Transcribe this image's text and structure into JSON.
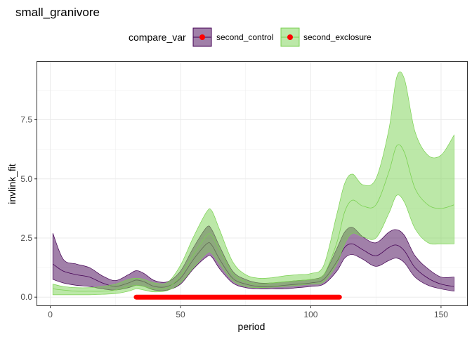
{
  "chart_data": {
    "type": "area",
    "title": "small_granivore",
    "xlabel": "period",
    "ylabel": "invlink_fit",
    "xlim": [
      -5,
      160
    ],
    "ylim": [
      -0.35,
      9.95
    ],
    "x_ticks": [
      0,
      50,
      100,
      150
    ],
    "x_tick_labels": [
      "0",
      "50",
      "100",
      "150"
    ],
    "y_ticks": [
      0,
      2.5,
      5,
      7.5
    ],
    "y_tick_labels": [
      "0.0",
      "2.5",
      "5.0",
      "7.5"
    ],
    "grid": true,
    "legend": {
      "title": "compare_var",
      "placement": "top",
      "entries": [
        "second_control",
        "second_exclosure"
      ]
    },
    "series": [
      {
        "name": "second_control",
        "fill_color": "#440154",
        "line_color": "#440154",
        "fill_opacity": 0.5,
        "x": [
          1,
          5,
          10,
          15,
          20,
          25,
          30,
          33,
          36,
          40,
          45,
          50,
          55,
          60,
          62,
          65,
          70,
          75,
          80,
          85,
          90,
          95,
          100,
          105,
          110,
          113,
          116,
          120,
          125,
          130,
          133,
          136,
          140,
          145,
          150,
          155
        ],
        "fit": [
          1.4,
          1.1,
          0.95,
          0.85,
          0.6,
          0.45,
          0.6,
          0.72,
          0.65,
          0.45,
          0.45,
          0.8,
          1.6,
          2.25,
          2.2,
          1.6,
          0.8,
          0.55,
          0.45,
          0.45,
          0.5,
          0.55,
          0.6,
          0.75,
          1.5,
          2.1,
          2.25,
          2.0,
          1.75,
          2.1,
          2.2,
          1.95,
          1.25,
          0.8,
          0.55,
          0.45
        ],
        "lower": [
          0.75,
          0.6,
          0.5,
          0.45,
          0.35,
          0.3,
          0.4,
          0.5,
          0.45,
          0.3,
          0.3,
          0.55,
          1.2,
          1.7,
          1.7,
          1.2,
          0.6,
          0.4,
          0.35,
          0.35,
          0.35,
          0.4,
          0.45,
          0.55,
          1.1,
          1.65,
          1.8,
          1.6,
          1.3,
          1.55,
          1.65,
          1.45,
          0.85,
          0.5,
          0.35,
          0.25
        ],
        "upper": [
          2.7,
          1.6,
          1.4,
          1.25,
          0.9,
          0.7,
          0.95,
          1.12,
          1.0,
          0.7,
          0.65,
          1.1,
          2.1,
          2.95,
          2.85,
          2.15,
          1.1,
          0.75,
          0.6,
          0.6,
          0.65,
          0.7,
          0.75,
          0.95,
          2.05,
          2.75,
          2.95,
          2.55,
          2.3,
          2.75,
          2.85,
          2.6,
          1.75,
          1.2,
          0.85,
          0.85
        ]
      },
      {
        "name": "second_exclosure",
        "fill_color": "#7AD151",
        "line_color": "#7AD151",
        "fill_opacity": 0.5,
        "x": [
          1,
          5,
          10,
          15,
          20,
          25,
          30,
          33,
          36,
          40,
          45,
          50,
          55,
          60,
          62,
          65,
          70,
          75,
          80,
          85,
          90,
          95,
          100,
          105,
          110,
          113,
          116,
          120,
          125,
          130,
          133,
          136,
          140,
          145,
          150,
          155
        ],
        "fit": [
          0.35,
          0.3,
          0.25,
          0.25,
          0.25,
          0.3,
          0.45,
          0.5,
          0.45,
          0.35,
          0.4,
          0.9,
          1.8,
          2.6,
          2.6,
          2.0,
          1.0,
          0.65,
          0.55,
          0.6,
          0.65,
          0.7,
          0.75,
          0.95,
          2.3,
          3.6,
          4.1,
          3.85,
          3.9,
          5.3,
          6.4,
          6.1,
          4.6,
          3.9,
          3.75,
          3.9
        ],
        "lower": [
          0.1,
          0.1,
          0.1,
          0.1,
          0.12,
          0.15,
          0.25,
          0.35,
          0.3,
          0.22,
          0.28,
          0.6,
          1.25,
          1.85,
          1.85,
          1.4,
          0.7,
          0.45,
          0.4,
          0.42,
          0.45,
          0.5,
          0.55,
          0.65,
          1.4,
          2.25,
          2.7,
          2.55,
          2.5,
          3.55,
          4.3,
          4.0,
          2.9,
          2.3,
          2.25,
          2.25
        ],
        "upper": [
          0.55,
          0.45,
          0.4,
          0.4,
          0.45,
          0.55,
          0.75,
          0.8,
          0.75,
          0.6,
          0.62,
          1.35,
          2.55,
          3.6,
          3.65,
          2.85,
          1.5,
          0.95,
          0.8,
          0.82,
          0.9,
          0.95,
          1.0,
          1.35,
          3.5,
          4.8,
          5.2,
          4.75,
          5.0,
          7.1,
          9.3,
          9.2,
          7.0,
          6.0,
          6.0,
          6.85
        ]
      }
    ],
    "marker_segment": {
      "color": "#FF0000",
      "x_start": 33,
      "x_end": 111,
      "y": 0
    }
  }
}
